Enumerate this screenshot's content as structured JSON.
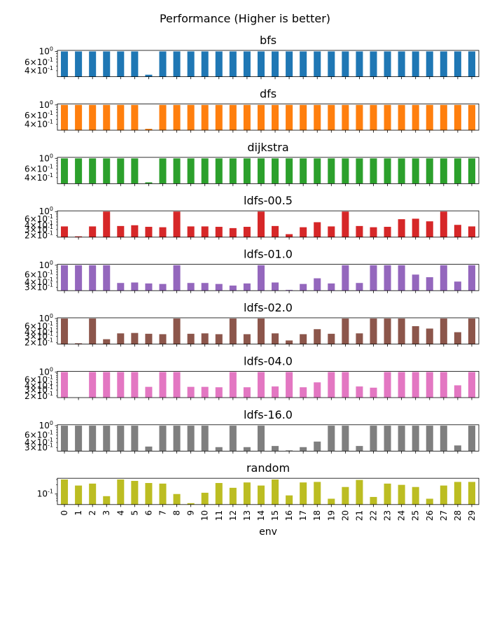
{
  "figure": {
    "title": "Performance (Higher is better)",
    "xlabel": "env"
  },
  "chart_data": {
    "type": "bar",
    "x_categories": [
      "0",
      "1",
      "2",
      "3",
      "4",
      "5",
      "6",
      "7",
      "8",
      "9",
      "10",
      "11",
      "12",
      "13",
      "14",
      "15",
      "16",
      "17",
      "18",
      "19",
      "20",
      "21",
      "22",
      "23",
      "24",
      "25",
      "26",
      "27",
      "28",
      "29"
    ],
    "xlabel": "env",
    "subplots": [
      {
        "title": "bfs",
        "color": "#1f77b4",
        "yscale": "log",
        "ylim": [
          0.3,
          1.05
        ],
        "major_ticks": [
          {
            "v": 1.0,
            "label": "10^0"
          }
        ],
        "minor_ticks": [
          {
            "v": 0.6,
            "label": "6×10^-1"
          },
          {
            "v": 0.4,
            "label": "4×10^-1"
          }
        ],
        "values": [
          1,
          1,
          1,
          1,
          1,
          1,
          0.33,
          1,
          1,
          1,
          1,
          1,
          1,
          1,
          1,
          1,
          1,
          1,
          1,
          1,
          1,
          1,
          1,
          1,
          1,
          1,
          1,
          1,
          1,
          1
        ]
      },
      {
        "title": "dfs",
        "color": "#ff7f0e",
        "yscale": "log",
        "ylim": [
          0.3,
          1.05
        ],
        "major_ticks": [
          {
            "v": 1.0,
            "label": "10^0"
          }
        ],
        "minor_ticks": [
          {
            "v": 0.6,
            "label": "6×10^-1"
          },
          {
            "v": 0.4,
            "label": "4×10^-1"
          }
        ],
        "values": [
          1,
          1,
          1,
          1,
          1,
          1,
          0.32,
          1,
          1,
          1,
          1,
          1,
          1,
          1,
          1,
          1,
          1,
          1,
          1,
          1,
          1,
          1,
          1,
          1,
          1,
          1,
          1,
          1,
          1,
          1
        ]
      },
      {
        "title": "dijkstra",
        "color": "#2ca02c",
        "yscale": "log",
        "ylim": [
          0.3,
          1.05
        ],
        "major_ticks": [
          {
            "v": 1.0,
            "label": "10^0"
          }
        ],
        "minor_ticks": [
          {
            "v": 0.6,
            "label": "6×10^-1"
          },
          {
            "v": 0.4,
            "label": "4×10^-1"
          }
        ],
        "values": [
          1,
          1,
          1,
          1,
          1,
          1,
          0.32,
          1,
          1,
          1,
          1,
          1,
          1,
          1,
          1,
          1,
          1,
          1,
          1,
          1,
          1,
          1,
          1,
          1,
          1,
          1,
          1,
          1,
          1,
          1
        ]
      },
      {
        "title": "ldfs-00.5",
        "color": "#d62728",
        "yscale": "log",
        "ylim": [
          0.18,
          1.05
        ],
        "major_ticks": [
          {
            "v": 1.0,
            "label": "10^0"
          }
        ],
        "minor_ticks": [
          {
            "v": 0.6,
            "label": "6×10^-1"
          },
          {
            "v": 0.4,
            "label": "4×10^-1"
          },
          {
            "v": 0.3,
            "label": "3×10^-1"
          },
          {
            "v": 0.2,
            "label": "2×10^-1"
          }
        ],
        "values": [
          0.37,
          0.19,
          0.37,
          1,
          0.38,
          0.4,
          0.36,
          0.35,
          1,
          0.37,
          0.37,
          0.36,
          0.33,
          0.36,
          1,
          0.38,
          0.22,
          0.35,
          0.49,
          0.37,
          1,
          0.38,
          0.35,
          0.36,
          0.6,
          0.62,
          0.52,
          1,
          0.41,
          0.37
        ]
      },
      {
        "title": "ldfs-01.0",
        "color": "#9467bd",
        "yscale": "log",
        "ylim": [
          0.25,
          1.05
        ],
        "major_ticks": [
          {
            "v": 1.0,
            "label": "10^0"
          }
        ],
        "minor_ticks": [
          {
            "v": 0.6,
            "label": "6×10^-1"
          },
          {
            "v": 0.4,
            "label": "4×10^-1"
          },
          {
            "v": 0.3,
            "label": "3×10^-1"
          }
        ],
        "values": [
          1,
          1,
          1,
          1,
          0.38,
          0.39,
          0.37,
          0.36,
          1,
          0.38,
          0.38,
          0.36,
          0.33,
          0.37,
          1,
          0.39,
          0.26,
          0.36,
          0.49,
          0.37,
          1,
          0.38,
          1,
          1,
          1,
          0.6,
          0.52,
          1,
          0.41,
          1
        ]
      },
      {
        "title": "ldfs-02.0",
        "color": "#8c564b",
        "yscale": "log",
        "ylim": [
          0.18,
          1.05
        ],
        "major_ticks": [
          {
            "v": 1.0,
            "label": "10^0"
          }
        ],
        "minor_ticks": [
          {
            "v": 0.6,
            "label": "6×10^-1"
          },
          {
            "v": 0.4,
            "label": "4×10^-1"
          },
          {
            "v": 0.3,
            "label": "3×10^-1"
          },
          {
            "v": 0.2,
            "label": "2×10^-1"
          }
        ],
        "values": [
          1,
          0.19,
          1,
          0.25,
          0.37,
          0.38,
          0.36,
          0.35,
          1,
          0.36,
          0.37,
          0.35,
          1,
          0.35,
          1,
          0.37,
          0.23,
          0.35,
          0.49,
          0.36,
          1,
          0.37,
          1,
          1,
          1,
          0.6,
          0.51,
          1,
          0.4,
          1
        ]
      },
      {
        "title": "ldfs-04.0",
        "color": "#e377c2",
        "yscale": "log",
        "ylim": [
          0.18,
          1.05
        ],
        "major_ticks": [
          {
            "v": 1.0,
            "label": "10^0"
          }
        ],
        "minor_ticks": [
          {
            "v": 0.6,
            "label": "6×10^-1"
          },
          {
            "v": 0.4,
            "label": "4×10^-1"
          },
          {
            "v": 0.3,
            "label": "3×10^-1"
          },
          {
            "v": 0.2,
            "label": "2×10^-1"
          }
        ],
        "values": [
          1,
          0.18,
          1,
          1,
          1,
          1,
          0.37,
          1,
          1,
          0.37,
          0.37,
          0.36,
          1,
          0.36,
          1,
          0.38,
          1,
          0.36,
          0.5,
          1,
          1,
          0.38,
          0.35,
          1,
          1,
          1,
          1,
          1,
          0.41,
          1
        ]
      },
      {
        "title": "ldfs-16.0",
        "color": "#7f7f7f",
        "yscale": "log",
        "ylim": [
          0.25,
          1.05
        ],
        "major_ticks": [
          {
            "v": 1.0,
            "label": "10^0"
          }
        ],
        "minor_ticks": [
          {
            "v": 0.6,
            "label": "6×10^-1"
          },
          {
            "v": 0.4,
            "label": "4×10^-1"
          },
          {
            "v": 0.3,
            "label": "3×10^-1"
          }
        ],
        "values": [
          1,
          1,
          1,
          1,
          1,
          1,
          0.32,
          1,
          1,
          1,
          1,
          0.31,
          1,
          0.31,
          1,
          0.33,
          0.26,
          0.31,
          0.42,
          1,
          1,
          0.33,
          1,
          1,
          1,
          1,
          1,
          1,
          0.34,
          1
        ]
      },
      {
        "title": "random",
        "color": "#bcbd22",
        "yscale": "log",
        "ylim": [
          0.045,
          0.33
        ],
        "major_ticks": [
          {
            "v": 0.1,
            "label": "10^-1"
          }
        ],
        "minor_ticks": [],
        "values": [
          0.3,
          0.19,
          0.22,
          0.085,
          0.3,
          0.27,
          0.23,
          0.22,
          0.1,
          0.05,
          0.11,
          0.23,
          0.16,
          0.24,
          0.19,
          0.3,
          0.09,
          0.24,
          0.25,
          0.07,
          0.17,
          0.29,
          0.08,
          0.22,
          0.2,
          0.17,
          0.07,
          0.19,
          0.25,
          0.25
        ]
      }
    ]
  }
}
